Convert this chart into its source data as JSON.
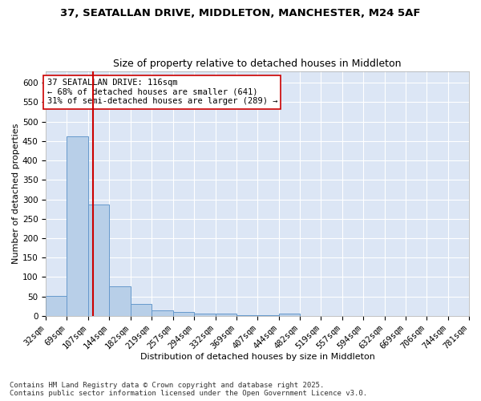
{
  "title_line1": "37, SEATALLAN DRIVE, MIDDLETON, MANCHESTER, M24 5AF",
  "title_line2": "Size of property relative to detached houses in Middleton",
  "xlabel": "Distribution of detached houses by size in Middleton",
  "ylabel": "Number of detached properties",
  "bin_edges": [
    32,
    69,
    107,
    144,
    182,
    219,
    257,
    294,
    332,
    369,
    407,
    444,
    482,
    519,
    557,
    594,
    632,
    669,
    706,
    744,
    781
  ],
  "bin_heights": [
    52,
    462,
    287,
    76,
    30,
    14,
    10,
    5,
    5,
    2,
    1,
    6,
    0,
    0,
    0,
    0,
    0,
    0,
    0,
    0
  ],
  "bar_color": "#b8cfe8",
  "bar_edge_color": "#6699cc",
  "property_size": 116,
  "red_line_color": "#cc0000",
  "annotation_text": "37 SEATALLAN DRIVE: 116sqm\n← 68% of detached houses are smaller (641)\n31% of semi-detached houses are larger (289) →",
  "annotation_box_color": "white",
  "annotation_box_edge_color": "#cc0000",
  "ylim": [
    0,
    630
  ],
  "yticks": [
    0,
    50,
    100,
    150,
    200,
    250,
    300,
    350,
    400,
    450,
    500,
    550,
    600
  ],
  "background_color": "#dce6f5",
  "grid_color": "#c8d4e8",
  "footnote": "Contains HM Land Registry data © Crown copyright and database right 2025.\nContains public sector information licensed under the Open Government Licence v3.0.",
  "title_fontsize": 9.5,
  "subtitle_fontsize": 9,
  "axis_label_fontsize": 8,
  "tick_fontsize": 7.5,
  "annotation_fontsize": 7.5,
  "footnote_fontsize": 6.5
}
